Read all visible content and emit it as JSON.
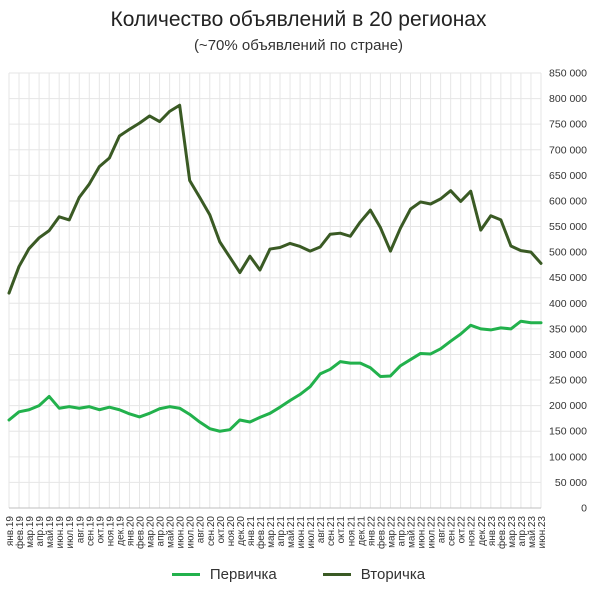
{
  "chart_data": {
    "type": "line",
    "title": "Количество объявлений  в 20 регионах",
    "subtitle": "(~70% объявлений по стране)",
    "xlabel": "",
    "ylabel": "",
    "ylim": [
      0,
      850000
    ],
    "y_ticks": [
      {
        "value": 0,
        "label": "0"
      },
      {
        "value": 50000,
        "label": "50 000"
      },
      {
        "value": 100000,
        "label": "100 000"
      },
      {
        "value": 150000,
        "label": "150 000"
      },
      {
        "value": 200000,
        "label": "200 000"
      },
      {
        "value": 250000,
        "label": "250 000"
      },
      {
        "value": 300000,
        "label": "300 000"
      },
      {
        "value": 350000,
        "label": "350 000"
      },
      {
        "value": 400000,
        "label": "400 000"
      },
      {
        "value": 450000,
        "label": "450 000"
      },
      {
        "value": 500000,
        "label": "500 000"
      },
      {
        "value": 550000,
        "label": "550 000"
      },
      {
        "value": 600000,
        "label": "600 000"
      },
      {
        "value": 650000,
        "label": "650 000"
      },
      {
        "value": 700000,
        "label": "700 000"
      },
      {
        "value": 750000,
        "label": "750 000"
      },
      {
        "value": 800000,
        "label": "800 000"
      },
      {
        "value": 850000,
        "label": "850 000"
      }
    ],
    "grid": true,
    "legend_position": "bottom",
    "categories": [
      "янв.19",
      "фев.19",
      "мар.19",
      "апр.19",
      "май.19",
      "июн.19",
      "июл.19",
      "авг.19",
      "сен.19",
      "окт.19",
      "ноя.19",
      "дек.19",
      "янв.20",
      "фев.20",
      "мар.20",
      "апр.20",
      "май.20",
      "июн.20",
      "июл.20",
      "авг.20",
      "сен.20",
      "окт.20",
      "ноя.20",
      "дек.20",
      "янв.21",
      "фев.21",
      "мар.21",
      "апр.21",
      "май.21",
      "июн.21",
      "июл.21",
      "авг.21",
      "сен.21",
      "окт.21",
      "ноя.21",
      "дек.21",
      "янв.22",
      "фев.22",
      "мар.22",
      "апр.22",
      "май.22",
      "июн.22",
      "июл.22",
      "авг.22",
      "сен.22",
      "окт.22",
      "ноя.22",
      "дек.22",
      "янв.23",
      "фев.23",
      "мар.23",
      "апр.23",
      "май.23",
      "июн.23"
    ],
    "series": [
      {
        "name": "Первичка",
        "color": "#22b14c",
        "values": [
          172000,
          188000,
          192000,
          200000,
          218000,
          195000,
          198000,
          195000,
          198000,
          192000,
          197000,
          192000,
          184000,
          178000,
          185000,
          194000,
          198000,
          195000,
          183000,
          168000,
          155000,
          150000,
          153000,
          172000,
          168000,
          177000,
          185000,
          197000,
          210000,
          222000,
          237000,
          262000,
          271000,
          286000,
          283000,
          283000,
          274000,
          257000,
          258000,
          278000,
          290000,
          302000,
          301000,
          311000,
          326000,
          340000,
          357000,
          350000,
          348000,
          352000,
          350000,
          365000,
          362000,
          362000
        ]
      },
      {
        "name": "Вторичка",
        "color": "#3a5a24",
        "values": [
          420000,
          472000,
          507000,
          528000,
          542000,
          569000,
          563000,
          607000,
          633000,
          667000,
          684000,
          727000,
          740000,
          752000,
          766000,
          755000,
          775000,
          787000,
          640000,
          607000,
          573000,
          520000,
          490000,
          460000,
          492000,
          465000,
          506000,
          509000,
          517000,
          511000,
          502000,
          510000,
          535000,
          537000,
          531000,
          559000,
          582000,
          548000,
          502000,
          547000,
          584000,
          598000,
          594000,
          604000,
          620000,
          599000,
          619000,
          543000,
          571000,
          563000,
          512000,
          503000,
          500000,
          478000
        ]
      }
    ]
  },
  "legend": {
    "items": [
      {
        "label": "Первичка",
        "color": "#22b14c"
      },
      {
        "label": "Вторичка",
        "color": "#3a5a24"
      }
    ]
  }
}
